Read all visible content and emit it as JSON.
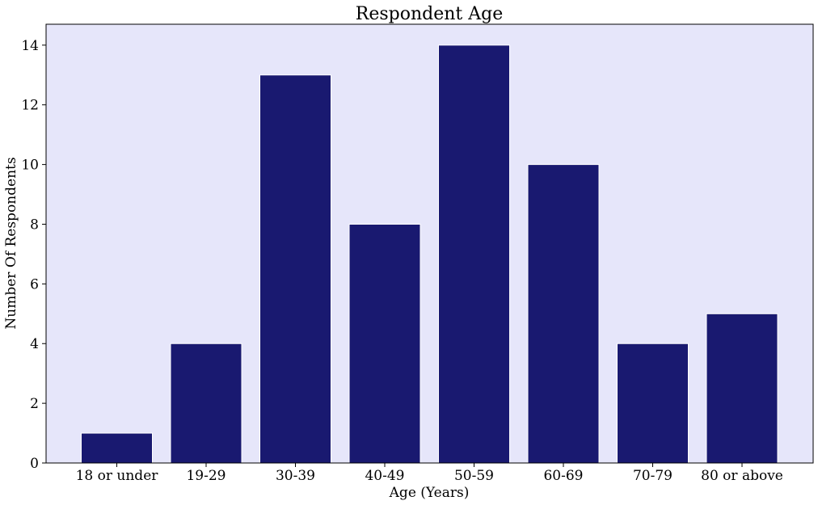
{
  "chart_data": {
    "type": "bar",
    "title": "Respondent Age",
    "xlabel": "Age (Years)",
    "ylabel": "Number Of Respondents",
    "categories": [
      "18 or under",
      "19-29",
      "30-39",
      "40-49",
      "50-59",
      "60-69",
      "70-79",
      "80 or above"
    ],
    "values": [
      1,
      4,
      13,
      8,
      14,
      10,
      4,
      5
    ],
    "ylim": [
      0,
      14.7
    ],
    "yticks": [
      "0",
      "2",
      "4",
      "6",
      "8",
      "10",
      "12",
      "14"
    ],
    "grid": false,
    "colors": {
      "bar": "#191970",
      "bar_edge": "#ffffff",
      "plot_background": "#e6e6fa",
      "axis": "#000000"
    }
  }
}
